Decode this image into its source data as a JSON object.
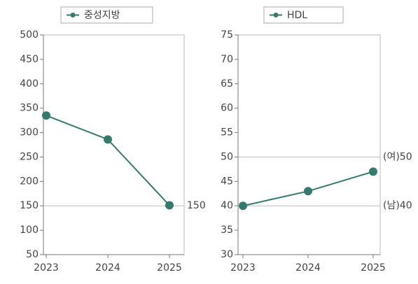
{
  "chart_data": [
    {
      "type": "line",
      "categories": [
        "2023",
        "2024",
        "2025"
      ],
      "series": [
        {
          "name": "중성지방",
          "color": "#357a6c",
          "values": [
            335,
            286,
            151
          ]
        }
      ],
      "ylim": [
        50,
        500
      ],
      "yticks": [
        50,
        100,
        150,
        200,
        250,
        300,
        350,
        400,
        450,
        500
      ],
      "reference_lines": [
        {
          "value": 150,
          "label": "150"
        }
      ]
    },
    {
      "type": "line",
      "categories": [
        "2023",
        "2024",
        "2025"
      ],
      "series": [
        {
          "name": "HDL",
          "color": "#357a6c",
          "values": [
            40,
            43,
            47
          ]
        }
      ],
      "ylim": [
        30,
        75
      ],
      "yticks": [
        30,
        35,
        40,
        45,
        50,
        55,
        60,
        65,
        70,
        75
      ],
      "reference_lines": [
        {
          "value": 50,
          "label": "(여)50"
        },
        {
          "value": 40,
          "label": "(남)40"
        }
      ]
    }
  ]
}
